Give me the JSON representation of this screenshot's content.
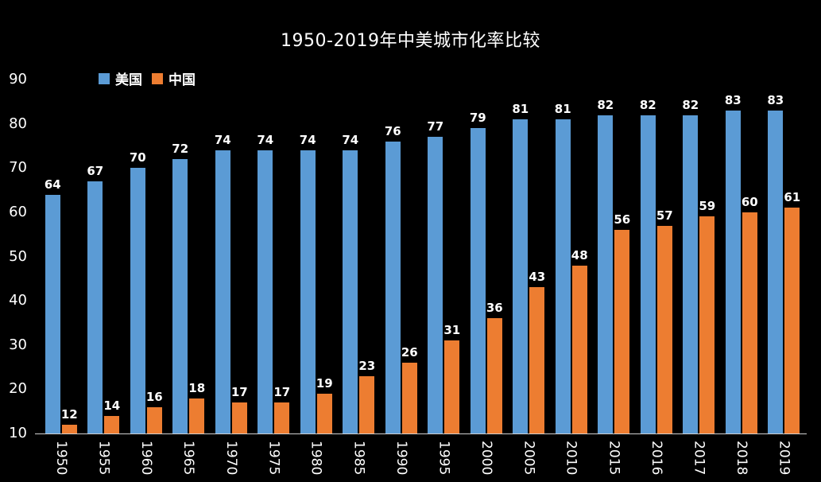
{
  "chart_data": {
    "type": "bar",
    "title": "1950-2019年中美城市化率比较",
    "categories": [
      "1950",
      "1955",
      "1960",
      "1965",
      "1970",
      "1975",
      "1980",
      "1985",
      "1990",
      "1995",
      "2000",
      "2005",
      "2010",
      "2015",
      "2016",
      "2017",
      "2018",
      "2019"
    ],
    "series": [
      {
        "key": "us",
        "name": "美国",
        "color": "#5B9BD5",
        "values": [
          64,
          67,
          70,
          72,
          74,
          74,
          74,
          74,
          76,
          77,
          79,
          81,
          81,
          82,
          82,
          82,
          83,
          83
        ]
      },
      {
        "key": "china",
        "name": "中国",
        "color": "#ED7D31",
        "values": [
          12,
          14,
          16,
          18,
          17,
          17,
          19,
          23,
          26,
          31,
          36,
          43,
          48,
          56,
          57,
          59,
          60,
          61
        ]
      }
    ],
    "xlabel": "",
    "ylabel": "",
    "y_axis": {
      "min": 10,
      "max": 90,
      "step": 10,
      "ticks": [
        90,
        80,
        70,
        60,
        50,
        40,
        30,
        20,
        10
      ]
    },
    "ylim": [
      10,
      90
    ],
    "legend_position": "top-left",
    "grid": false,
    "data_labels": true,
    "colors": {
      "background": "#000000",
      "text": "#FFFFFF",
      "axis_line": "#D0D0D0"
    }
  }
}
